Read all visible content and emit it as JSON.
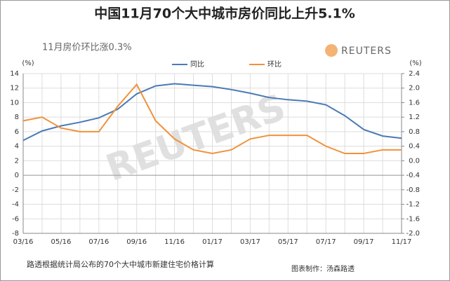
{
  "chart_data": {
    "type": "line",
    "title": "中国11月70个大中城市房价同比上升5.1%",
    "subtitle": "11月房价环比涨0.3%",
    "logo": "REUTERS",
    "watermark": "REUTERS",
    "footnote": "路透根据统计局公布的70个大中城市新建住宅价格计算",
    "credit": "图表制作：汤森路透",
    "y_label": "(%)",
    "y2_label": "(%)",
    "categories": [
      "03/16",
      null,
      "05/16",
      null,
      "07/16",
      null,
      "09/16",
      null,
      "11/16",
      null,
      "01/17",
      null,
      "03/17",
      null,
      "05/17",
      null,
      "07/17",
      null,
      "09/17",
      null,
      "11/17"
    ],
    "series": [
      {
        "name": "同比",
        "color": "#4a7ab5",
        "values": [
          4.8,
          6.1,
          6.8,
          7.3,
          7.9,
          9.1,
          11.2,
          12.3,
          12.6,
          12.4,
          12.2,
          11.8,
          11.3,
          10.7,
          10.4,
          10.2,
          9.7,
          8.2,
          6.3,
          5.4,
          5.1
        ]
      },
      {
        "name": "环比",
        "color": "#f0923a",
        "axis": "y2",
        "values": [
          1.1,
          1.2,
          0.9,
          0.8,
          0.8,
          1.5,
          2.1,
          1.1,
          0.6,
          0.3,
          0.2,
          0.3,
          0.6,
          0.7,
          0.7,
          0.7,
          0.4,
          0.2,
          0.2,
          0.3,
          0.3
        ]
      }
    ],
    "ylim": [
      -8,
      14
    ],
    "yticks": [
      -8,
      -6,
      -4,
      -2,
      0,
      2,
      4,
      6,
      8,
      10,
      12,
      14
    ],
    "y2lim": [
      -2,
      2.4
    ],
    "y2ticks": [
      {
        "value": -2,
        "label": "-2.0"
      },
      -1.6,
      -1.2,
      -0.8,
      -0.4,
      {
        "value": 0,
        "label": "0.0"
      },
      0.4,
      0.8,
      1.2,
      1.6,
      {
        "value": 2,
        "label": "2.0"
      },
      2.4
    ],
    "grid": true
  }
}
